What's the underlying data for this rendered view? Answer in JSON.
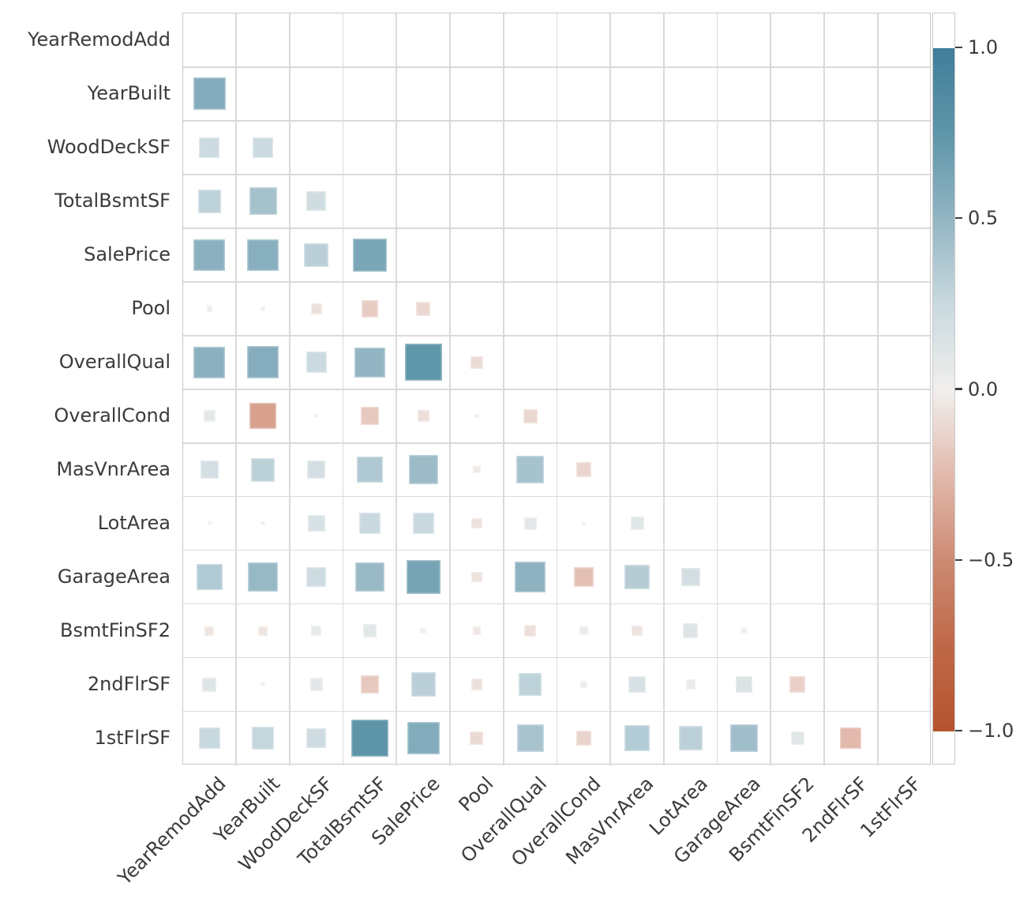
{
  "chart_data": {
    "type": "heatmap",
    "subtype": "correlation-matrix-sized-squares",
    "triangle": "lower-excluding-diagonal",
    "title": "",
    "variables": [
      "YearRemodAdd",
      "YearBuilt",
      "WoodDeckSF",
      "TotalBsmtSF",
      "SalePrice",
      "Pool",
      "OverallQual",
      "OverallCond",
      "MasVnrArea",
      "LotArea",
      "GarageArea",
      "BsmtFinSF2",
      "2ndFlrSF",
      "1stFlrSF"
    ],
    "x_tick_rotation_deg": 45,
    "grid": true,
    "matrix_lower_triangle": [
      [],
      [
        0.57
      ],
      [
        0.23,
        0.24
      ],
      [
        0.3,
        0.42,
        0.21
      ],
      [
        0.54,
        0.55,
        0.32,
        0.62
      ],
      [
        -0.02,
        -0.01,
        -0.07,
        -0.16,
        -0.11
      ],
      [
        0.54,
        0.56,
        0.24,
        0.5,
        0.74,
        -0.09
      ],
      [
        0.08,
        -0.38,
        -0.01,
        -0.18,
        -0.08,
        0.01,
        -0.11
      ],
      [
        0.18,
        0.31,
        0.18,
        0.37,
        0.46,
        -0.03,
        0.41,
        -0.12
      ],
      [
        0.01,
        0.01,
        0.16,
        0.25,
        0.25,
        -0.06,
        0.09,
        -0.01,
        0.1
      ],
      [
        0.36,
        0.48,
        0.22,
        0.47,
        0.63,
        -0.06,
        0.52,
        -0.22,
        0.34,
        0.19
      ],
      [
        -0.05,
        -0.05,
        0.06,
        0.1,
        0.02,
        -0.04,
        -0.07,
        0.04,
        -0.06,
        0.12,
        -0.02
      ],
      [
        0.11,
        0.01,
        0.09,
        -0.18,
        0.32,
        -0.07,
        0.3,
        0.03,
        0.16,
        0.05,
        0.14,
        -0.14
      ],
      [
        0.26,
        0.27,
        0.22,
        0.76,
        0.58,
        -0.1,
        0.4,
        -0.13,
        0.35,
        0.31,
        0.44,
        0.1,
        -0.25
      ]
    ],
    "colorbar": {
      "position": "right",
      "vmin": -1.0,
      "vmax": 1.0,
      "tick_labels": [
        "1.0",
        "0.5",
        "0.0",
        "−0.5",
        "−1.0"
      ],
      "tick_values": [
        1.0,
        0.5,
        0.0,
        -0.5,
        -1.0
      ]
    },
    "palette_anchors": [
      {
        "v": 1.0,
        "color": "#417d9a"
      },
      {
        "v": 0.75,
        "color": "#5e95a9"
      },
      {
        "v": 0.5,
        "color": "#93b5c3"
      },
      {
        "v": 0.25,
        "color": "#c9d9df"
      },
      {
        "v": 0.0,
        "color": "#f1efed"
      },
      {
        "v": -0.25,
        "color": "#e2b9ac"
      },
      {
        "v": -0.5,
        "color": "#cd8a73"
      },
      {
        "v": -0.75,
        "color": "#bf6848"
      },
      {
        "v": -1.0,
        "color": "#b5532f"
      }
    ],
    "colors": {
      "background": "#ffffff",
      "grid_line": "#dadada",
      "plot_border": "#c9c9c9",
      "label_text": "#3b3b3b",
      "tick_mark": "#3f3f3f"
    }
  }
}
